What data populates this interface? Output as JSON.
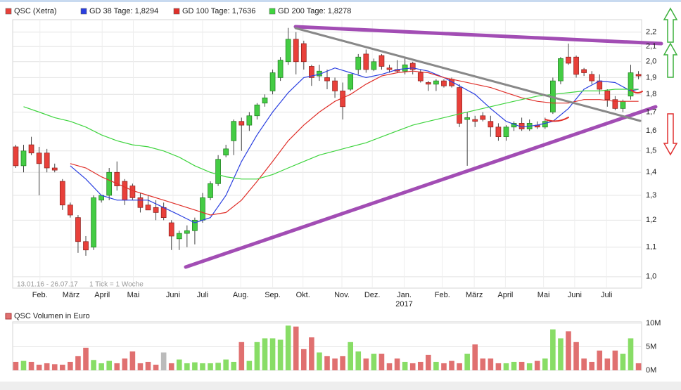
{
  "chart_data": [
    {
      "type": "candlestick",
      "series": [
        {
          "name": "QSC (Xetra)",
          "color": "#e8403a",
          "up_color": "#44cc44",
          "open": [
            1.52,
            1.43,
            1.53,
            1.49,
            1.49,
            1.42,
            1.36,
            1.26,
            1.21,
            1.12,
            1.1,
            1.28,
            1.3,
            1.4,
            1.36,
            1.34,
            1.29,
            1.26,
            1.25,
            1.25,
            1.19,
            1.13,
            1.15,
            1.16,
            1.2,
            1.29,
            1.35,
            1.48,
            1.55,
            1.65,
            1.63,
            1.68,
            1.75,
            1.82,
            1.9,
            2.0,
            2.15,
            2.12,
            1.97,
            1.91,
            1.9,
            1.88,
            1.82,
            1.83,
            1.95,
            2.05,
            1.95,
            2.04,
            1.96,
            1.95,
            1.94,
            1.99,
            1.93,
            1.87,
            1.86,
            1.88,
            1.89,
            1.84,
            1.66,
            1.66,
            1.68,
            1.65,
            1.62,
            1.57,
            1.62,
            1.64,
            1.61,
            1.63,
            1.62,
            1.7,
            1.88,
            2.03,
            2.03,
            1.95,
            1.92,
            1.88,
            1.82,
            1.77,
            1.72,
            1.79,
            1.92
          ],
          "high": [
            1.53,
            1.53,
            1.57,
            1.52,
            1.51,
            1.44,
            1.37,
            1.27,
            1.22,
            1.14,
            1.3,
            1.3,
            1.42,
            1.45,
            1.37,
            1.35,
            1.31,
            1.3,
            1.28,
            1.27,
            1.2,
            1.16,
            1.18,
            1.21,
            1.31,
            1.36,
            1.48,
            1.53,
            1.66,
            1.67,
            1.7,
            1.75,
            1.8,
            1.95,
            2.03,
            2.23,
            2.2,
            2.14,
            1.98,
            1.98,
            1.95,
            1.9,
            1.87,
            1.92,
            2.05,
            2.08,
            2.02,
            2.05,
            1.98,
            2.01,
            2.03,
            2.0,
            1.95,
            1.88,
            1.89,
            1.89,
            1.9,
            1.86,
            1.7,
            1.68,
            1.7,
            1.68,
            1.64,
            1.63,
            1.65,
            1.67,
            1.66,
            1.65,
            1.67,
            1.9,
            2.03,
            2.12,
            2.04,
            1.96,
            1.94,
            1.92,
            1.83,
            1.79,
            1.77,
            1.98,
            1.94
          ],
          "low": [
            1.42,
            1.4,
            1.48,
            1.3,
            1.4,
            1.4,
            1.24,
            1.21,
            1.08,
            1.07,
            1.09,
            1.27,
            1.28,
            1.32,
            1.26,
            1.28,
            1.23,
            1.24,
            1.2,
            1.2,
            1.09,
            1.09,
            1.1,
            1.11,
            1.19,
            1.28,
            1.34,
            1.47,
            1.48,
            1.5,
            1.6,
            1.66,
            1.73,
            1.8,
            1.88,
            1.98,
            1.92,
            1.95,
            1.85,
            1.88,
            1.83,
            1.78,
            1.66,
            1.82,
            1.92,
            1.93,
            1.94,
            1.95,
            1.93,
            1.93,
            1.92,
            1.92,
            1.87,
            1.82,
            1.82,
            1.84,
            1.84,
            1.62,
            1.43,
            1.62,
            1.65,
            1.57,
            1.55,
            1.55,
            1.6,
            1.6,
            1.6,
            1.61,
            1.61,
            1.69,
            1.86,
            1.98,
            1.9,
            1.91,
            1.86,
            1.8,
            1.73,
            1.71,
            1.7,
            1.77,
            1.89
          ],
          "close": [
            1.43,
            1.5,
            1.49,
            1.44,
            1.42,
            1.41,
            1.26,
            1.22,
            1.12,
            1.09,
            1.29,
            1.3,
            1.4,
            1.34,
            1.28,
            1.29,
            1.25,
            1.24,
            1.23,
            1.21,
            1.14,
            1.15,
            1.16,
            1.2,
            1.29,
            1.35,
            1.46,
            1.51,
            1.65,
            1.63,
            1.68,
            1.74,
            1.78,
            1.93,
            2.01,
            2.15,
            2.0,
            2.0,
            1.9,
            1.94,
            1.88,
            1.82,
            1.73,
            1.92,
            2.03,
            1.95,
            2.0,
            1.97,
            1.95,
            1.94,
            1.98,
            1.95,
            1.88,
            1.86,
            1.88,
            1.85,
            1.85,
            1.64,
            1.67,
            1.65,
            1.66,
            1.62,
            1.57,
            1.62,
            1.64,
            1.61,
            1.64,
            1.62,
            1.65,
            1.88,
            2.02,
            1.99,
            1.92,
            1.93,
            1.88,
            1.83,
            1.77,
            1.72,
            1.76,
            1.93,
            1.91
          ]
        },
        {
          "name": "GD 38 Tage: 1,8294",
          "color": "#2a3fe0",
          "x": [
            7,
            9,
            11,
            13,
            15,
            17,
            19,
            21,
            23,
            25,
            27,
            29,
            31,
            33,
            35,
            37,
            39,
            41,
            43,
            45,
            47,
            49,
            51,
            53,
            55,
            57,
            59,
            61,
            63,
            65,
            67,
            69,
            71,
            73,
            75,
            77,
            79,
            80
          ],
          "values": [
            1.43,
            1.37,
            1.3,
            1.28,
            1.28,
            1.28,
            1.25,
            1.22,
            1.19,
            1.21,
            1.3,
            1.45,
            1.58,
            1.7,
            1.81,
            1.9,
            1.92,
            1.96,
            1.93,
            1.9,
            1.92,
            1.95,
            1.96,
            1.94,
            1.9,
            1.85,
            1.8,
            1.72,
            1.65,
            1.62,
            1.63,
            1.65,
            1.72,
            1.83,
            1.88,
            1.87,
            1.82,
            1.83
          ]
        },
        {
          "name": "GD 100 Tage: 1,7636",
          "color": "#e0302a",
          "x": [
            7,
            9,
            11,
            13,
            15,
            17,
            19,
            21,
            23,
            25,
            27,
            29,
            31,
            33,
            35,
            37,
            39,
            41,
            43,
            45,
            47,
            49,
            51,
            53,
            55,
            57,
            59,
            61,
            63,
            65,
            67,
            69,
            71,
            73,
            75,
            77,
            79,
            80
          ],
          "values": [
            1.44,
            1.42,
            1.38,
            1.35,
            1.32,
            1.3,
            1.28,
            1.26,
            1.24,
            1.22,
            1.23,
            1.28,
            1.36,
            1.45,
            1.55,
            1.63,
            1.7,
            1.76,
            1.8,
            1.86,
            1.91,
            1.93,
            1.94,
            1.93,
            1.9,
            1.88,
            1.86,
            1.84,
            1.81,
            1.78,
            1.76,
            1.75,
            1.75,
            1.77,
            1.77,
            1.76,
            1.76,
            1.76
          ]
        },
        {
          "name": "GD 200 Tage: 1,8278",
          "color": "#3ed43e",
          "x": [
            1,
            3,
            5,
            7,
            9,
            11,
            13,
            15,
            17,
            19,
            21,
            23,
            25,
            27,
            29,
            31,
            33,
            35,
            37,
            39,
            41,
            43,
            45,
            47,
            49,
            51,
            53,
            55,
            57,
            59,
            61,
            63,
            65,
            67,
            69,
            71,
            73,
            75,
            77,
            79,
            80
          ],
          "values": [
            1.73,
            1.7,
            1.67,
            1.65,
            1.62,
            1.58,
            1.55,
            1.53,
            1.52,
            1.5,
            1.47,
            1.43,
            1.4,
            1.38,
            1.37,
            1.37,
            1.39,
            1.42,
            1.45,
            1.48,
            1.5,
            1.52,
            1.54,
            1.57,
            1.6,
            1.63,
            1.65,
            1.67,
            1.69,
            1.71,
            1.73,
            1.75,
            1.77,
            1.79,
            1.8,
            1.81,
            1.82,
            1.82,
            1.83,
            1.83,
            1.83
          ]
        }
      ],
      "log_scale": true,
      "grid": true,
      "xlim": [
        -0.4,
        80.4
      ],
      "xticks": [
        {
          "value": 3.1,
          "label": "Feb."
        },
        {
          "value": 7.1,
          "label": "März"
        },
        {
          "value": 11.1,
          "label": "April"
        },
        {
          "value": 15.1,
          "label": "Mai"
        },
        {
          "value": 20.2,
          "label": "Juni"
        },
        {
          "value": 24,
          "label": "Juli"
        },
        {
          "value": 28.9,
          "label": "Aug."
        },
        {
          "value": 33,
          "label": "Sep."
        },
        {
          "value": 36.9,
          "label": "Okt."
        },
        {
          "value": 41.9,
          "label": "Nov."
        },
        {
          "value": 45.8,
          "label": "Dez."
        },
        {
          "value": 49.9,
          "label": "Jan."
        },
        {
          "value": 54.8,
          "label": "Feb."
        },
        {
          "value": 58.9,
          "label": "März"
        },
        {
          "value": 62.9,
          "label": "April"
        },
        {
          "value": 67.8,
          "label": "Mai"
        },
        {
          "value": 71.8,
          "label": "Juni"
        },
        {
          "value": 75.9,
          "label": "Juli"
        }
      ],
      "year_ticks": [
        {
          "value": 49.9,
          "label": "2017"
        }
      ],
      "ylim": [
        0.964,
        2.29
      ],
      "yticks": [
        {
          "value": 1.0,
          "label": "1,0"
        },
        {
          "value": 1.1,
          "label": "1,1"
        },
        {
          "value": 1.2,
          "label": "1,2"
        },
        {
          "value": 1.3,
          "label": "1,3"
        },
        {
          "value": 1.4,
          "label": "1,4"
        },
        {
          "value": 1.5,
          "label": "1,5"
        },
        {
          "value": 1.6,
          "label": "1,6"
        },
        {
          "value": 1.7,
          "label": "1,7"
        },
        {
          "value": 1.8,
          "label": "1,8"
        },
        {
          "value": 1.9,
          "label": "1,9"
        },
        {
          "value": 2.0,
          "label": "2,0"
        },
        {
          "value": 2.1,
          "label": "2,1"
        },
        {
          "value": 2.2,
          "label": "2,2"
        }
      ],
      "annotations": [
        "13.01.16 - 26.07.17",
        "1 Tick = 1 Woche"
      ]
    },
    {
      "type": "bar",
      "title": "QSC Volumen in Euro",
      "color": "#e07070",
      "values": [
        1.8,
        2.0,
        1.8,
        1.2,
        1.5,
        1.3,
        1.2,
        1.8,
        3.0,
        4.8,
        2.2,
        1.5,
        2.0,
        1.5,
        2.5,
        4.0,
        1.5,
        1.8,
        1.2,
        3.8,
        1.5,
        2.3,
        1.5,
        1.7,
        1.5,
        1.5,
        1.6,
        2.3,
        1.8,
        6.0,
        2.0,
        6.0,
        6.8,
        6.8,
        6.5,
        9.5,
        9.3,
        4.5,
        7.0,
        3.8,
        3.0,
        2.5,
        3.0,
        6.0,
        4.0,
        2.5,
        3.5,
        3.5,
        1.5,
        2.5,
        1.8,
        1.5,
        1.8,
        3.3,
        1.8,
        1.5,
        2.0,
        1.5,
        3.5,
        5.5,
        2.5,
        2.5,
        1.5,
        1.5,
        1.8,
        1.8,
        1.5,
        2.0,
        2.5,
        8.7,
        6.8,
        8.3,
        6.0,
        2.5,
        1.8,
        4.2,
        2.5,
        4.2,
        3.5,
        6.8,
        1.5
      ],
      "colors": [
        "#e07070",
        "#88dd66",
        "#e07070",
        "#e07070",
        "#e07070",
        "#e07070",
        "#e07070",
        "#e07070",
        "#e07070",
        "#e07070",
        "#88dd66",
        "#88dd66",
        "#88dd66",
        "#e07070",
        "#e07070",
        "#e07070",
        "#e07070",
        "#e07070",
        "#e07070",
        "#bbbbbb",
        "#e07070",
        "#88dd66",
        "#88dd66",
        "#88dd66",
        "#88dd66",
        "#88dd66",
        "#88dd66",
        "#88dd66",
        "#88dd66",
        "#e07070",
        "#88dd66",
        "#88dd66",
        "#88dd66",
        "#88dd66",
        "#88dd66",
        "#88dd66",
        "#e07070",
        "#e07070",
        "#e07070",
        "#88dd66",
        "#e07070",
        "#e07070",
        "#e07070",
        "#88dd66",
        "#88dd66",
        "#e07070",
        "#88dd66",
        "#e07070",
        "#e07070",
        "#e07070",
        "#88dd66",
        "#e07070",
        "#e07070",
        "#e07070",
        "#88dd66",
        "#e07070",
        "#e07070",
        "#e07070",
        "#88dd66",
        "#e07070",
        "#e07070",
        "#e07070",
        "#e07070",
        "#88dd66",
        "#88dd66",
        "#e07070",
        "#88dd66",
        "#e07070",
        "#88dd66",
        "#88dd66",
        "#88dd66",
        "#e07070",
        "#e07070",
        "#e07070",
        "#e07070",
        "#e07070",
        "#e07070",
        "#e07070",
        "#88dd66",
        "#88dd66",
        "#e07070"
      ],
      "xlim": [
        -0.4,
        80.4
      ],
      "ylim": [
        0,
        10.3
      ],
      "yticks": [
        {
          "value": 0,
          "label": "0M"
        },
        {
          "value": 5,
          "label": "5M"
        },
        {
          "value": 10,
          "label": "10M"
        }
      ]
    }
  ]
}
